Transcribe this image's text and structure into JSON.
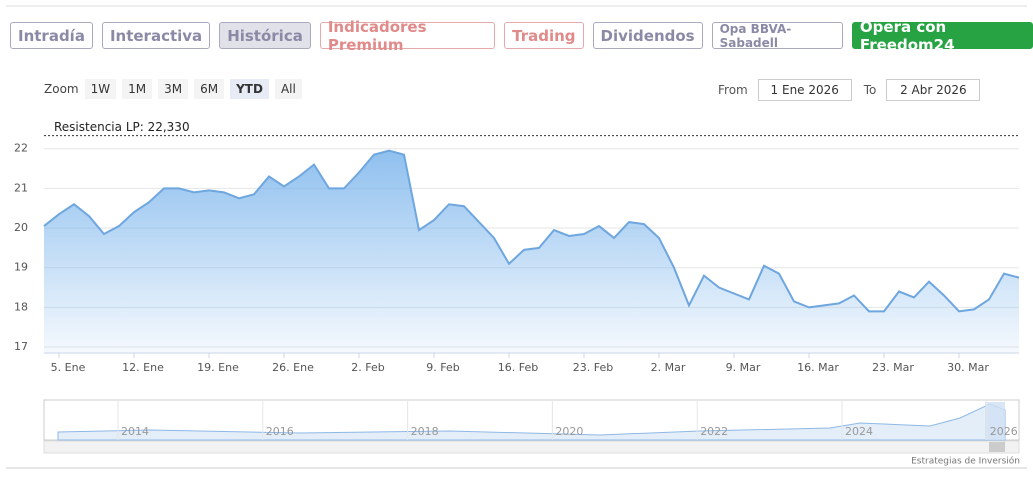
{
  "tabs": [
    "Intradía",
    "Interactiva",
    "Histórica",
    "Indicadores Premium",
    "Trading",
    "Dividendos",
    "Opa BBVA-Sabadell",
    "Opera con Freedom24"
  ],
  "active_tab": 2,
  "zoom": {
    "label": "Zoom",
    "buttons": [
      "1W",
      "1M",
      "3M",
      "6M",
      "YTD",
      "All"
    ],
    "active": 4
  },
  "range": {
    "from_label": "From",
    "from": "1 Ene 2026",
    "to_label": "To",
    "to": "2 Abr 2026"
  },
  "chart_data": {
    "type": "line",
    "x": [
      0,
      1,
      2,
      3,
      4,
      5,
      6,
      7,
      8,
      9,
      10,
      11,
      12,
      13,
      14,
      15,
      16,
      17,
      18,
      19,
      20,
      21,
      22,
      23,
      24,
      25,
      26,
      27,
      28,
      29,
      30,
      31,
      32,
      33,
      34,
      35,
      36,
      37,
      38,
      39,
      40,
      41,
      42,
      43,
      44,
      45,
      46,
      47,
      48,
      49,
      50,
      51,
      52,
      53,
      54,
      55,
      56,
      57,
      58,
      59,
      60,
      61,
      62,
      63,
      64,
      65
    ],
    "values": [
      20.05,
      20.35,
      20.6,
      20.3,
      19.85,
      20.05,
      20.4,
      20.65,
      21.0,
      21.0,
      20.9,
      20.95,
      20.9,
      20.75,
      20.85,
      21.3,
      21.05,
      21.3,
      21.6,
      21.0,
      21.0,
      21.4,
      21.85,
      21.95,
      21.85,
      19.95,
      20.2,
      20.6,
      20.55,
      20.15,
      19.75,
      19.1,
      19.45,
      19.5,
      19.95,
      19.8,
      19.85,
      20.05,
      19.75,
      20.15,
      20.1,
      19.75,
      19.0,
      18.05,
      18.8,
      18.5,
      18.35,
      18.2,
      19.05,
      18.85,
      18.15,
      18.0,
      18.05,
      18.1,
      18.3,
      17.9,
      17.9,
      18.4,
      18.25,
      18.65,
      18.3,
      17.9,
      17.95,
      18.2,
      18.85,
      18.75
    ],
    "color": "#6ea6df",
    "xlim": [
      0,
      65
    ],
    "xticks": [
      {
        "value": 1,
        "label": "5. Ene"
      },
      {
        "value": 6,
        "label": "12. Ene"
      },
      {
        "value": 11,
        "label": "19. Ene"
      },
      {
        "value": 16,
        "label": "26. Ene"
      },
      {
        "value": 21,
        "label": "2. Feb"
      },
      {
        "value": 26,
        "label": "9. Feb"
      },
      {
        "value": 31,
        "label": "16. Feb"
      },
      {
        "value": 36,
        "label": "23. Feb"
      },
      {
        "value": 41,
        "label": "2. Mar"
      },
      {
        "value": 46,
        "label": "9. Mar"
      },
      {
        "value": 51,
        "label": "16. Mar"
      },
      {
        "value": 56,
        "label": "23. Mar"
      },
      {
        "value": 61,
        "label": "30. Mar"
      }
    ],
    "ylim": [
      16.85,
      22.85
    ],
    "yticks": [
      17,
      18,
      19,
      20,
      21,
      22
    ],
    "grid": true,
    "plot_line": {
      "value": 22.33,
      "label": "Resistencia LP: 22,330"
    }
  },
  "navigator": {
    "labels": [
      "2014",
      "2016",
      "2018",
      "2020",
      "2022",
      "2024",
      "2026"
    ]
  },
  "credit": "Estrategias de Inversión"
}
